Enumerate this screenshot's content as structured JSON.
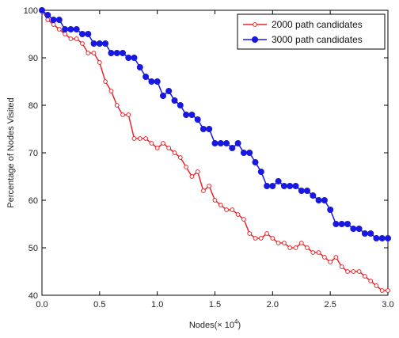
{
  "chart_data": {
    "type": "line",
    "xlabel": "Nodes(× 10",
    "xlabel_exponent": "4",
    "xlabel_suffix": ")",
    "ylabel": "Percentage of Nodes Visited",
    "xlim": [
      0,
      3.0
    ],
    "ylim": [
      40,
      100
    ],
    "x_ticks": [
      "0.0",
      "0.5",
      "1.0",
      "1.5",
      "2.0",
      "2.5",
      "3.0"
    ],
    "y_ticks": [
      "40",
      "50",
      "60",
      "70",
      "80",
      "90",
      "100"
    ],
    "grid": false,
    "legend_position": "top-right",
    "series": [
      {
        "name": "2000 path candidates",
        "color": "#e8262a",
        "marker": "open-circle",
        "x": [
          0.0,
          0.05,
          0.1,
          0.15,
          0.2,
          0.25,
          0.3,
          0.35,
          0.4,
          0.45,
          0.5,
          0.55,
          0.6,
          0.65,
          0.7,
          0.75,
          0.8,
          0.85,
          0.9,
          0.95,
          1.0,
          1.05,
          1.1,
          1.15,
          1.2,
          1.25,
          1.3,
          1.35,
          1.4,
          1.45,
          1.5,
          1.55,
          1.6,
          1.65,
          1.7,
          1.75,
          1.8,
          1.85,
          1.9,
          1.95,
          2.0,
          2.05,
          2.1,
          2.15,
          2.2,
          2.25,
          2.3,
          2.35,
          2.4,
          2.45,
          2.5,
          2.55,
          2.6,
          2.65,
          2.7,
          2.75,
          2.8,
          2.85,
          2.9,
          2.95,
          3.0
        ],
        "y": [
          100,
          98,
          97,
          96,
          95,
          94,
          94,
          93,
          91,
          91,
          89,
          85,
          83,
          80,
          78,
          78,
          73,
          73,
          73,
          72,
          71,
          72,
          71,
          70,
          69,
          67,
          65,
          66,
          62,
          63,
          60,
          59,
          58,
          58,
          57,
          56,
          53,
          52,
          52,
          53,
          52,
          51,
          51,
          50,
          50,
          51,
          50,
          49,
          49,
          48,
          47,
          48,
          46,
          45,
          45,
          45,
          44,
          43,
          42,
          41,
          41
        ]
      },
      {
        "name": "3000 path candidates",
        "color": "#1818e0",
        "marker": "filled-circle",
        "x": [
          0.0,
          0.05,
          0.1,
          0.15,
          0.2,
          0.25,
          0.3,
          0.35,
          0.4,
          0.45,
          0.5,
          0.55,
          0.6,
          0.65,
          0.7,
          0.75,
          0.8,
          0.85,
          0.9,
          0.95,
          1.0,
          1.05,
          1.1,
          1.15,
          1.2,
          1.25,
          1.3,
          1.35,
          1.4,
          1.45,
          1.5,
          1.55,
          1.6,
          1.65,
          1.7,
          1.75,
          1.8,
          1.85,
          1.9,
          1.95,
          2.0,
          2.05,
          2.1,
          2.15,
          2.2,
          2.25,
          2.3,
          2.35,
          2.4,
          2.45,
          2.5,
          2.55,
          2.6,
          2.65,
          2.7,
          2.75,
          2.8,
          2.85,
          2.9,
          2.95,
          3.0
        ],
        "y": [
          100,
          99,
          98,
          98,
          96,
          96,
          96,
          95,
          95,
          93,
          93,
          93,
          91,
          91,
          91,
          90,
          90,
          88,
          86,
          85,
          85,
          82,
          83,
          81,
          80,
          78,
          78,
          77,
          75,
          75,
          72,
          72,
          72,
          71,
          72,
          70,
          70,
          68,
          66,
          63,
          63,
          64,
          63,
          63,
          63,
          62,
          62,
          61,
          60,
          60,
          58,
          55,
          55,
          55,
          54,
          54,
          53,
          53,
          52,
          52,
          52
        ]
      }
    ]
  }
}
